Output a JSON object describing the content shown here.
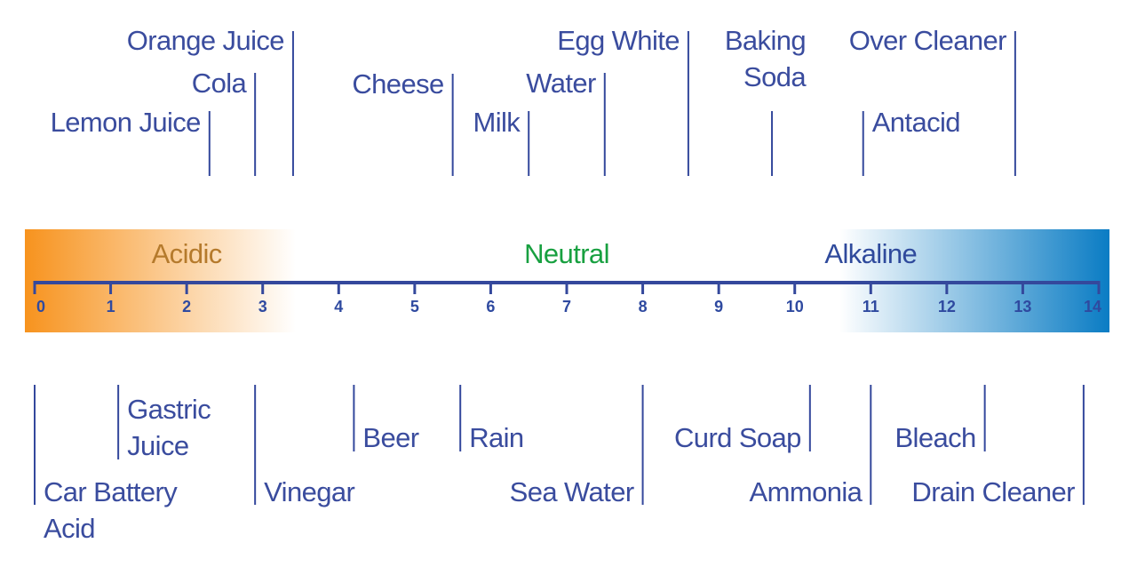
{
  "chart_data": {
    "type": "scale",
    "xlim": [
      0,
      14
    ],
    "xticks": [
      0,
      1,
      2,
      3,
      4,
      5,
      6,
      7,
      8,
      9,
      10,
      11,
      12,
      13,
      14
    ],
    "zones": [
      {
        "name": "Acidic",
        "value": 2,
        "color": "#b57a2c"
      },
      {
        "name": "Neutral",
        "value": 7,
        "color": "#18a040"
      },
      {
        "name": "Alkaline",
        "value": 11,
        "color": "#2f4a9c"
      }
    ],
    "acid_color": "#f7931e",
    "base_color": "#0a7cc4",
    "axis_color": "#34489c",
    "top": [
      {
        "name": [
          "Lemon Juice"
        ],
        "value": 2.3
      },
      {
        "name": [
          "Cola"
        ],
        "value": 2.9
      },
      {
        "name": [
          "Orange Juice"
        ],
        "value": 3.4
      },
      {
        "name": [
          "Cheese"
        ],
        "value": 5.5
      },
      {
        "name": [
          "Milk"
        ],
        "value": 6.5
      },
      {
        "name": [
          "Water"
        ],
        "value": 7.5
      },
      {
        "name": [
          "Egg White"
        ],
        "value": 8.6
      },
      {
        "name": [
          "Baking",
          "Soda"
        ],
        "value": 9.7
      },
      {
        "name": [
          "Antacid"
        ],
        "value": 10.9
      },
      {
        "name": [
          "Over Cleaner"
        ],
        "value": 12.9
      }
    ],
    "bottom": [
      {
        "name": [
          "Car Battery",
          "Acid"
        ],
        "value": 0
      },
      {
        "name": [
          "Gastric",
          "Juice"
        ],
        "value": 1.1
      },
      {
        "name": [
          "Vinegar"
        ],
        "value": 2.9
      },
      {
        "name": [
          "Beer"
        ],
        "value": 4.2
      },
      {
        "name": [
          "Rain"
        ],
        "value": 5.6
      },
      {
        "name": [
          "Sea Water"
        ],
        "value": 8
      },
      {
        "name": [
          "Curd Soap"
        ],
        "value": 10.2
      },
      {
        "name": [
          "Ammonia"
        ],
        "value": 11
      },
      {
        "name": [
          "Bleach"
        ],
        "value": 12.5
      },
      {
        "name": [
          "Drain Cleaner"
        ],
        "value": 13.8
      }
    ]
  }
}
